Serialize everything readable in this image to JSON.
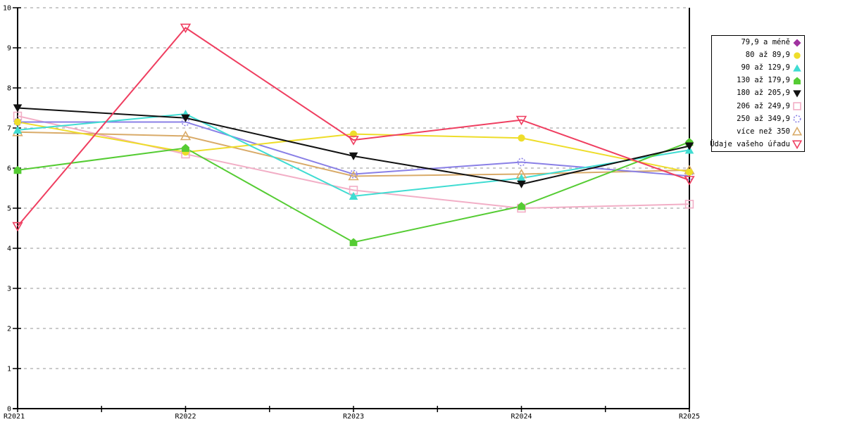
{
  "chart_data": {
    "type": "line",
    "title": "",
    "xlabel": "",
    "ylabel": "",
    "x_labels": [
      "R2021",
      "R2022",
      "R2023",
      "R2024",
      "R2025"
    ],
    "y_ticks": [
      0,
      1,
      2,
      3,
      4,
      5,
      6,
      7,
      8,
      9,
      10
    ],
    "ylim": [
      0,
      10
    ],
    "grid": "horizontal-dashed",
    "legend_position": "right-outside",
    "colors": {
      "grid": "#aaaaaa",
      "axis": "#000000",
      "background": "#ffffff"
    },
    "series": [
      {
        "name": "79,9 a méně",
        "color": "#a033a0",
        "marker": "diamond",
        "filled": true,
        "values": []
      },
      {
        "name": "80 až 89,9",
        "color": "#eedd2a",
        "marker": "circle",
        "filled": true,
        "values": [
          7.15,
          6.4,
          6.85,
          6.75,
          5.9
        ]
      },
      {
        "name": "90 až 129,9",
        "color": "#3fdcd2",
        "marker": "triangle-up",
        "filled": true,
        "values": [
          6.95,
          7.35,
          5.3,
          5.75,
          6.45
        ]
      },
      {
        "name": "130 až 179,9",
        "color": "#55cc33",
        "marker": "pentagon",
        "filled": true,
        "values": [
          5.95,
          6.5,
          4.15,
          5.05,
          6.65
        ]
      },
      {
        "name": "180 až 205,9",
        "color": "#111111",
        "marker": "triangle-down",
        "filled": true,
        "values": [
          7.5,
          7.25,
          6.3,
          5.6,
          6.55
        ]
      },
      {
        "name": "206 až 249,9",
        "color": "#f2aec6",
        "marker": "square",
        "filled": false,
        "values": [
          7.3,
          6.35,
          5.45,
          5.0,
          5.1
        ]
      },
      {
        "name": "250 až 349,9",
        "color": "#897fe6",
        "marker": "circle",
        "filled": false,
        "dashed_marker": true,
        "values": [
          7.15,
          7.15,
          5.85,
          6.15,
          5.8
        ]
      },
      {
        "name": "více než 350",
        "color": "#d9ab69",
        "marker": "triangle-up",
        "filled": false,
        "values": [
          6.9,
          6.8,
          5.8,
          5.85,
          5.95
        ]
      },
      {
        "name": "Údaje vašeho úřadu",
        "color": "#ef3e60",
        "marker": "triangle-down",
        "filled": false,
        "values": [
          4.55,
          9.5,
          6.7,
          7.2,
          5.7
        ]
      }
    ]
  }
}
